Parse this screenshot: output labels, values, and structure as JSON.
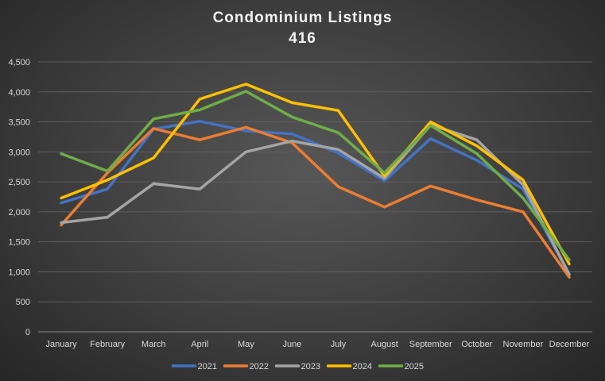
{
  "chart_data": {
    "type": "line",
    "title": "Condominium  Listings",
    "subtitle": "416",
    "xlabel": "",
    "ylabel": "",
    "ylim": [
      0,
      4500
    ],
    "ytick_step": 500,
    "grid": true,
    "legend_position": "bottom",
    "categories": [
      "January",
      "February",
      "March",
      "April",
      "May",
      "June",
      "July",
      "August",
      "September",
      "October",
      "November",
      "December"
    ],
    "series": [
      {
        "name": "2021",
        "color": "#4472c4",
        "values": [
          2150,
          2380,
          3380,
          3510,
          3350,
          3300,
          2980,
          2520,
          3220,
          2860,
          2380,
          950
        ]
      },
      {
        "name": "2022",
        "color": "#ed7d31",
        "values": [
          1780,
          2650,
          3390,
          3200,
          3410,
          3150,
          2420,
          2080,
          2430,
          2200,
          2000,
          910
        ]
      },
      {
        "name": "2023",
        "color": "#a5a5a5",
        "values": [
          1820,
          1910,
          2470,
          2380,
          3000,
          3180,
          3040,
          2560,
          3450,
          3200,
          2450,
          960
        ]
      },
      {
        "name": "2024",
        "color": "#ffc000",
        "values": [
          2230,
          2530,
          2900,
          3880,
          4130,
          3820,
          3690,
          2600,
          3500,
          3100,
          2530,
          1130
        ]
      },
      {
        "name": "2025",
        "color": "#70ad47",
        "values": [
          2970,
          2680,
          3550,
          3700,
          4010,
          3580,
          3320,
          2650,
          3440,
          2970,
          2230,
          1200
        ]
      }
    ]
  }
}
